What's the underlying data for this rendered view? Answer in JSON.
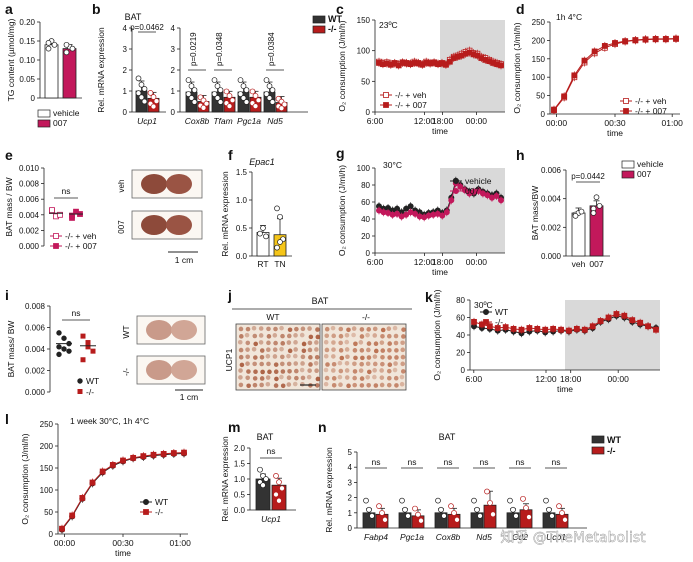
{
  "chart_data": [
    {
      "panel": "a",
      "type": "bar",
      "ylabel": "TG content (µmol/mg)",
      "ylim": [
        0,
        0.2
      ],
      "yticks": [
        "0",
        "0.05",
        "0.10",
        "0.15",
        "0.20"
      ],
      "categories": [
        "vehicle",
        "007"
      ],
      "values": [
        0.14,
        0.13
      ],
      "colors": [
        "#ffffff",
        "#c2185b"
      ],
      "legend": [
        "vehicle",
        "007"
      ],
      "points": [
        [
          0.13,
          0.15,
          0.14,
          0.145
        ],
        [
          0.12,
          0.135,
          0.13,
          0.14
        ]
      ]
    },
    {
      "panel": "b",
      "type": "bar",
      "subtitle": "BAT",
      "ylabel": "Rel. mRNA expression",
      "ylim": [
        0,
        4
      ],
      "yticks": [
        "0",
        "1",
        "2",
        "3",
        "4"
      ],
      "genes": [
        "Ucp1",
        "Cox8b",
        "Tfam",
        "Pgc1a",
        "Nd5"
      ],
      "wt": [
        1.0,
        0.95,
        0.95,
        0.95,
        0.95
      ],
      "ko": [
        0.65,
        0.5,
        0.7,
        0.7,
        0.45
      ],
      "pvalues": [
        "p=0.0462",
        "p=0.0219",
        "p=0.0348",
        "",
        "p=0.0384"
      ],
      "legend": [
        "WT",
        "-/-"
      ],
      "colors": [
        "#333333",
        "#b71c1c"
      ]
    },
    {
      "panel": "c",
      "type": "line",
      "subtitle": "23ºC",
      "ylabel": "O₂ consumption (J/ml/h)",
      "xlabel": "time",
      "ylim": [
        0,
        150
      ],
      "yticks": [
        "0",
        "50",
        "100",
        "150"
      ],
      "xticks": [
        "6:00",
        "12:00",
        "18:00",
        "00:00"
      ],
      "shade": [
        18,
        30
      ],
      "legend": [
        "-/- + veh",
        "-/- + 007"
      ],
      "series": [
        {
          "name": "-/- + veh",
          "values": [
            82,
            80,
            81,
            79,
            80,
            78,
            81,
            80,
            79,
            82,
            80,
            78,
            82,
            80,
            81,
            79,
            80,
            78,
            85,
            90,
            92,
            95,
            98,
            100,
            96,
            95,
            90,
            88,
            85,
            82,
            80,
            78
          ]
        },
        {
          "name": "-/- + 007",
          "values": [
            80,
            78,
            79,
            77,
            79,
            76,
            80,
            79,
            78,
            80,
            79,
            77,
            80,
            79,
            80,
            78,
            79,
            77,
            82,
            88,
            90,
            92,
            95,
            97,
            94,
            92,
            88,
            85,
            83,
            80,
            78,
            76
          ]
        }
      ]
    },
    {
      "panel": "d",
      "type": "line",
      "subtitle": "1h 4°C",
      "ylabel": "O₂ consumption (J/ml/h)",
      "xlabel": "time",
      "ylim": [
        0,
        250
      ],
      "yticks": [
        "0",
        "50",
        "100",
        "150",
        "200",
        "250"
      ],
      "xticks": [
        "00:00",
        "00:30",
        "01:00"
      ],
      "legend": [
        "-/- + veh",
        "-/- + 007"
      ],
      "series": [
        {
          "name": "-/- + veh",
          "values": [
            10,
            45,
            100,
            140,
            165,
            180,
            190,
            197,
            200,
            202,
            203,
            203,
            204
          ]
        },
        {
          "name": "-/- + 007",
          "values": [
            12,
            48,
            105,
            145,
            170,
            185,
            193,
            198,
            201,
            203,
            204,
            204,
            205
          ]
        }
      ]
    },
    {
      "panel": "e",
      "type": "scatter",
      "ylabel": "BAT mass / BW",
      "ylim": [
        0,
        0.01
      ],
      "yticks": [
        "0.000",
        "0.002",
        "0.004",
        "0.006",
        "0.008",
        "0.010"
      ],
      "categories": [
        "-/- + veh",
        "-/- + 007"
      ],
      "means": [
        0.0042,
        0.0041
      ],
      "annotation": "ns",
      "legend": [
        "-/- + veh",
        "-/- + 007"
      ],
      "points": [
        [
          0.0045,
          0.0038,
          0.004,
          0.0046
        ],
        [
          0.0039,
          0.0044,
          0.0041,
          0.0036
        ]
      ],
      "photo_labels": [
        "veh",
        "007"
      ],
      "scale": "1 cm"
    },
    {
      "panel": "f",
      "type": "bar",
      "subtitle": "Epac1",
      "ylabel": "Rel. mRNA expression",
      "ylim": [
        0,
        1.5
      ],
      "yticks": [
        "0.0",
        "0.5",
        "1.0",
        "1.5"
      ],
      "categories": [
        "RT",
        "TN"
      ],
      "values": [
        0.42,
        0.38
      ],
      "colors": [
        "#ffffff",
        "#f5c518"
      ],
      "points": [
        [
          0.4,
          0.5,
          0.35
        ],
        [
          0.85,
          0.7,
          0.3,
          0.15,
          0.25
        ]
      ]
    },
    {
      "panel": "g",
      "type": "line",
      "subtitle": "30°C",
      "ylabel": "O₂ consumption (J/ml/h)",
      "xlabel": "time",
      "ylim": [
        0,
        100
      ],
      "yticks": [
        "0",
        "20",
        "40",
        "60",
        "80",
        "100"
      ],
      "xticks": [
        "6:00",
        "12:00",
        "18:00",
        "00:00"
      ],
      "shade": [
        18,
        30
      ],
      "legend": [
        "vehicle",
        "007"
      ],
      "series": [
        {
          "name": "vehicle",
          "values": [
            55,
            52,
            53,
            50,
            52,
            48,
            52,
            55,
            50,
            48,
            45,
            47,
            48,
            50,
            47,
            50,
            65,
            85,
            80,
            75,
            72,
            70,
            75,
            72,
            70,
            68,
            70,
            65
          ]
        },
        {
          "name": "007",
          "values": [
            50,
            48,
            47,
            45,
            46,
            43,
            45,
            48,
            46,
            43,
            42,
            44,
            45,
            46,
            44,
            48,
            62,
            82,
            78,
            74,
            70,
            72,
            73,
            70,
            68,
            65,
            67,
            62
          ]
        }
      ]
    },
    {
      "panel": "h",
      "type": "bar",
      "ylabel": "BAT mass/BW",
      "ylim": [
        0,
        0.006
      ],
      "yticks": [
        "0.000",
        "0.002",
        "0.004",
        "0.006"
      ],
      "categories": [
        "veh",
        "007"
      ],
      "values": [
        0.003,
        0.0035
      ],
      "annotation": "p=0.0442",
      "legend": [
        "vehicle",
        "007"
      ],
      "colors": [
        "#ffffff",
        "#c2185b"
      ],
      "points": [
        [
          0.0029,
          0.003,
          0.0031,
          0.0028
        ],
        [
          0.0033,
          0.0041,
          0.0035,
          0.003
        ]
      ]
    },
    {
      "panel": "i",
      "type": "scatter",
      "ylabel": "BAT mass/ BW",
      "ylim": [
        0,
        0.008
      ],
      "yticks": [
        "0.000",
        "0.002",
        "0.004",
        "0.006",
        "0.008"
      ],
      "categories": [
        "WT",
        "-/-"
      ],
      "means": [
        0.0045,
        0.0043
      ],
      "annotation": "ns",
      "legend": [
        "WT",
        "-/-"
      ],
      "points": [
        [
          0.0055,
          0.005,
          0.0045,
          0.0042,
          0.004,
          0.0038,
          0.0035
        ],
        [
          0.0052,
          0.0046,
          0.0038,
          0.003,
          0.0042
        ]
      ],
      "photo_labels": [
        "WT",
        "-/-"
      ],
      "scale": "1 cm"
    },
    {
      "panel": "j",
      "type": "table",
      "title": "BAT",
      "columns": [
        "WT",
        "-/-"
      ],
      "row_label": "UCP1"
    },
    {
      "panel": "k",
      "type": "line",
      "subtitle": "30ºC",
      "ylabel": "O₂ consumption (J/ml/h)",
      "xlabel": "time",
      "ylim": [
        0,
        80
      ],
      "yticks": [
        "0",
        "20",
        "40",
        "60",
        "80"
      ],
      "xticks": [
        "6:00",
        "12:00",
        "18:00",
        "00:00"
      ],
      "shade": [
        18,
        30
      ],
      "legend": [
        "WT",
        "-/-"
      ],
      "series": [
        {
          "name": "WT",
          "values": [
            50,
            48,
            47,
            45,
            46,
            44,
            42,
            44,
            45,
            43,
            44,
            45,
            44,
            46,
            45,
            48,
            55,
            58,
            62,
            60,
            55,
            52,
            50,
            48
          ]
        },
        {
          "name": "-/-",
          "values": [
            55,
            52,
            50,
            48,
            49,
            47,
            46,
            48,
            47,
            46,
            47,
            46,
            45,
            47,
            46,
            50,
            56,
            60,
            64,
            62,
            57,
            54,
            50,
            46
          ]
        }
      ]
    },
    {
      "panel": "l",
      "type": "line",
      "subtitle": "1 week 30°C, 1h 4°C",
      "ylabel": "O₂ consumption (J/ml/h)",
      "xlabel": "time",
      "ylim": [
        0,
        250
      ],
      "yticks": [
        "0",
        "50",
        "100",
        "150",
        "200",
        "250"
      ],
      "xticks": [
        "00:00",
        "00:30",
        "01:00"
      ],
      "legend": [
        "WT",
        "-/-"
      ],
      "series": [
        {
          "name": "WT",
          "values": [
            10,
            40,
            80,
            115,
            140,
            155,
            165,
            172,
            175,
            178,
            180,
            182,
            183
          ]
        },
        {
          "name": "-/-",
          "values": [
            12,
            42,
            82,
            117,
            142,
            157,
            167,
            173,
            177,
            180,
            182,
            184,
            185
          ]
        }
      ]
    },
    {
      "panel": "m",
      "type": "bar",
      "subtitle": "BAT",
      "ylabel": "Rel. mRNA expression",
      "ylim": [
        0,
        2.0
      ],
      "yticks": [
        "0.0",
        "0.5",
        "1.0",
        "1.5",
        "2.0"
      ],
      "categories": [
        "Ucp1"
      ],
      "annotation": "ns",
      "wt": [
        1.0
      ],
      "ko": [
        0.8
      ],
      "colors": [
        "#333333",
        "#b71c1c"
      ],
      "points": [
        [
          1.3,
          1.1,
          1.0,
          0.9,
          0.8
        ],
        [
          1.1,
          0.9,
          0.7,
          0.5,
          0.3
        ]
      ]
    },
    {
      "panel": "n",
      "type": "bar",
      "title": "BAT",
      "ylabel": "Rel. mRNA expression",
      "ylim": [
        0,
        5
      ],
      "yticks": [
        "0",
        "1",
        "2",
        "3",
        "4",
        "5"
      ],
      "genes": [
        "Fabp4",
        "Pgc1a",
        "Cox8b",
        "Nd5",
        "Cd2",
        "Ucp1"
      ],
      "wt": [
        1.0,
        1.0,
        1.0,
        1.0,
        1.0,
        1.0
      ],
      "ko": [
        0.9,
        0.8,
        0.9,
        1.5,
        1.2,
        0.9
      ],
      "annotations": [
        "ns",
        "ns",
        "ns",
        "ns",
        "ns",
        "ns"
      ],
      "legend": [
        "WT",
        "-/-"
      ],
      "colors": [
        "#333333",
        "#b71c1c"
      ]
    }
  ],
  "watermark": "知乎 @TheMetabolist"
}
